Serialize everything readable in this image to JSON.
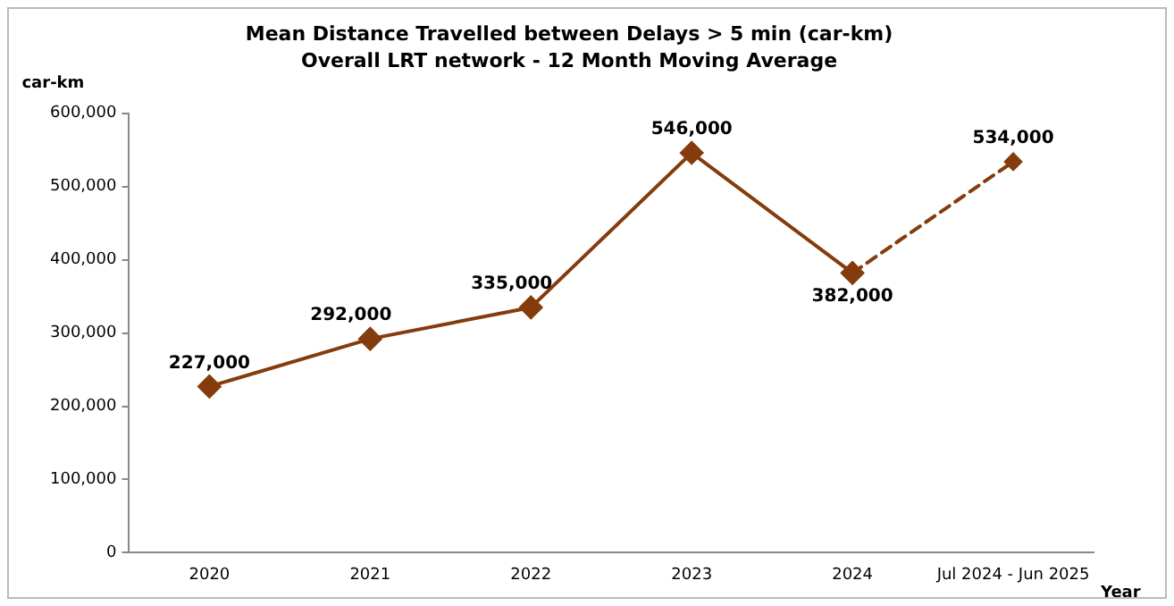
{
  "chart_data": {
    "type": "line",
    "title": "Mean Distance Travelled between Delays > 5 min (car-km)",
    "subtitle": "Overall LRT network - 12 Month Moving Average",
    "ylabel": "car-km",
    "xlabel": "Year",
    "categories": [
      "2020",
      "2021",
      "2022",
      "2023",
      "2024",
      "Jul 2024 - Jun 2025"
    ],
    "series": [
      {
        "color": "#843c0c",
        "values": [
          227000,
          292000,
          335000,
          546000,
          382000,
          null
        ],
        "value_labels": [
          "227,000",
          "292,000",
          "335,000",
          "546,000",
          "382,000",
          null
        ],
        "line_style": "solid"
      },
      {
        "color": "#843c0c",
        "values": [
          null,
          null,
          null,
          null,
          382000,
          534000
        ],
        "value_labels": [
          null,
          null,
          null,
          null,
          null,
          "534,000"
        ],
        "line_style": "dashed"
      }
    ],
    "ylim": [
      0,
      600000
    ],
    "yticks": [
      0,
      {
        "value": 100000,
        "label": "100,000"
      },
      {
        "value": 200000,
        "label": "200,000"
      },
      {
        "value": 300000,
        "label": "300,000"
      },
      {
        "value": 400000,
        "label": "400,000"
      },
      {
        "value": 500000,
        "label": "500,000"
      },
      {
        "value": 600000,
        "label": "600,000"
      }
    ],
    "grid": false,
    "legend": false,
    "marker": "diamond"
  }
}
